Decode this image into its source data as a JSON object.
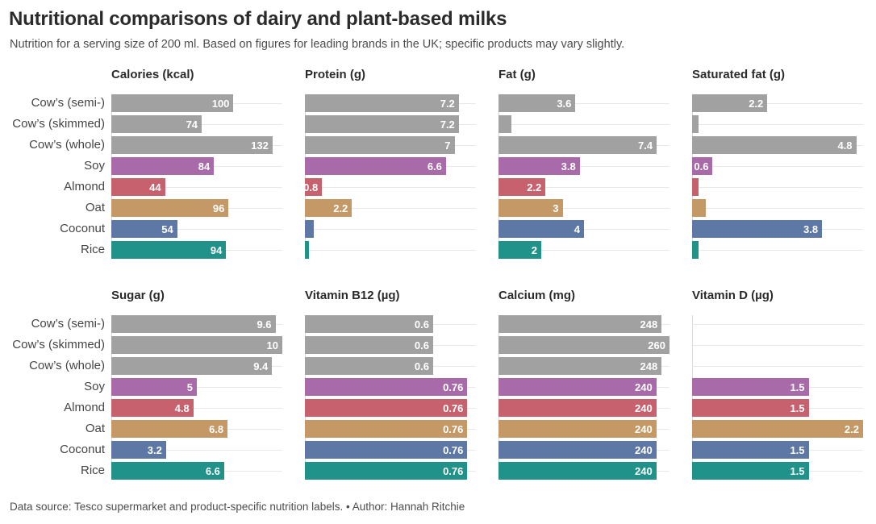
{
  "header": {
    "title": "Nutritional comparisons of dairy and plant-based milks",
    "subtitle": "Nutrition for a serving size of 200 ml. Based on figures for leading brands in the UK; specific products may vary slightly."
  },
  "footer": {
    "text": "Data source: Tesco supermarket and product-specific nutrition labels. • Author: Hannah Ritchie"
  },
  "colors": {
    "cow": "#a1a1a1",
    "soy": "#a86aa8",
    "almond": "#c8616e",
    "oat": "#c49966",
    "coconut": "#5e78a6",
    "rice": "#20928a",
    "gridline": "#e8e8e8",
    "axis_line": "#dcdcdc",
    "value_label": "#ffffff"
  },
  "category_color_keys": [
    "cow",
    "cow",
    "cow",
    "soy",
    "almond",
    "oat",
    "coconut",
    "rice"
  ],
  "chart_data": [
    {
      "type": "bar",
      "orientation": "horizontal",
      "title": "Calories (kcal)",
      "categories": [
        "Cow’s (semi-)",
        "Cow’s (skimmed)",
        "Cow’s (whole)",
        "Soy",
        "Almond",
        "Oat",
        "Coconut",
        "Rice"
      ],
      "values": [
        100,
        74,
        132,
        84,
        44,
        96,
        54,
        94
      ],
      "xlim": [
        0,
        140
      ],
      "show_category_labels": true,
      "grid": true,
      "legend": "none"
    },
    {
      "type": "bar",
      "orientation": "horizontal",
      "title": "Protein (g)",
      "categories": [
        "Cow’s (semi-)",
        "Cow’s (skimmed)",
        "Cow’s (whole)",
        "Soy",
        "Almond",
        "Oat",
        "Coconut",
        "Rice"
      ],
      "values": [
        7.2,
        7.2,
        7,
        6.6,
        0.8,
        2.2,
        0.4,
        0.2
      ],
      "xlim": [
        0,
        8
      ],
      "show_category_labels": false,
      "grid": true,
      "legend": "none"
    },
    {
      "type": "bar",
      "orientation": "horizontal",
      "title": "Fat (g)",
      "categories": [
        "Cow’s (semi-)",
        "Cow’s (skimmed)",
        "Cow’s (whole)",
        "Soy",
        "Almond",
        "Oat",
        "Coconut",
        "Rice"
      ],
      "values": [
        3.6,
        0.6,
        7.4,
        3.8,
        2.2,
        3,
        4,
        2
      ],
      "xlim": [
        0,
        8
      ],
      "show_category_labels": false,
      "grid": true,
      "legend": "none"
    },
    {
      "type": "bar",
      "orientation": "horizontal",
      "title": "Saturated fat (g)",
      "categories": [
        "Cow’s (semi-)",
        "Cow’s (skimmed)",
        "Cow’s (whole)",
        "Soy",
        "Almond",
        "Oat",
        "Coconut",
        "Rice"
      ],
      "values": [
        2.2,
        0.2,
        4.8,
        0.6,
        0.2,
        0.4,
        3.8,
        0.2
      ],
      "xlim": [
        0,
        5
      ],
      "show_category_labels": false,
      "grid": true,
      "legend": "none"
    },
    {
      "type": "bar",
      "orientation": "horizontal",
      "title": "Sugar (g)",
      "categories": [
        "Cow’s (semi-)",
        "Cow’s (skimmed)",
        "Cow’s (whole)",
        "Soy",
        "Almond",
        "Oat",
        "Coconut",
        "Rice"
      ],
      "values": [
        9.6,
        10,
        9.4,
        5,
        4.8,
        6.8,
        3.2,
        6.6
      ],
      "xlim": [
        0,
        10
      ],
      "show_category_labels": true,
      "grid": true,
      "legend": "none"
    },
    {
      "type": "bar",
      "orientation": "horizontal",
      "title": "Vitamin B12 (µg)",
      "categories": [
        "Cow’s (semi-)",
        "Cow’s (skimmed)",
        "Cow’s (whole)",
        "Soy",
        "Almond",
        "Oat",
        "Coconut",
        "Rice"
      ],
      "values": [
        0.6,
        0.6,
        0.6,
        0.76,
        0.76,
        0.76,
        0.76,
        0.76
      ],
      "xlim": [
        0,
        0.8
      ],
      "show_category_labels": false,
      "grid": true,
      "legend": "none"
    },
    {
      "type": "bar",
      "orientation": "horizontal",
      "title": "Calcium (mg)",
      "categories": [
        "Cow’s (semi-)",
        "Cow’s (skimmed)",
        "Cow’s (whole)",
        "Soy",
        "Almond",
        "Oat",
        "Coconut",
        "Rice"
      ],
      "values": [
        248,
        260,
        248,
        240,
        240,
        240,
        240,
        240
      ],
      "xlim": [
        0,
        260
      ],
      "show_category_labels": false,
      "grid": true,
      "legend": "none"
    },
    {
      "type": "bar",
      "orientation": "horizontal",
      "title": "Vitamin D (µg)",
      "categories": [
        "Cow’s (semi-)",
        "Cow’s (skimmed)",
        "Cow’s (whole)",
        "Soy",
        "Almond",
        "Oat",
        "Coconut",
        "Rice"
      ],
      "values": [
        null,
        null,
        null,
        1.5,
        1.5,
        2.2,
        1.5,
        1.5
      ],
      "xlim": [
        0,
        2.2
      ],
      "show_category_labels": false,
      "grid": true,
      "legend": "none"
    }
  ]
}
